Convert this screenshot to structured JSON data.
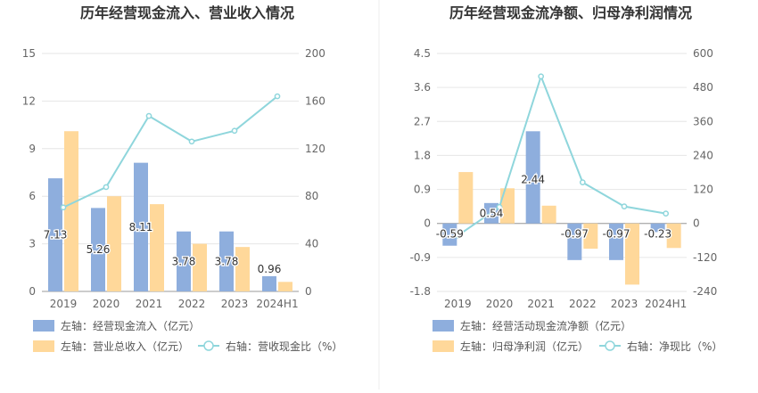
{
  "chart_data": [
    {
      "type": "bar",
      "title": "历年经营现金流入、营业收入情况",
      "categories": [
        "2019",
        "2020",
        "2021",
        "2022",
        "2023",
        "2024H1"
      ],
      "left_axis": {
        "ylim": [
          0,
          15
        ],
        "ticks": [
          "0",
          "3",
          "6",
          "9",
          "12",
          "15"
        ]
      },
      "right_axis": {
        "ylim": [
          0,
          200
        ],
        "ticks": [
          "0",
          "40",
          "80",
          "120",
          "160",
          "200"
        ]
      },
      "series": [
        {
          "name": "左轴：经营现金流入（亿元）",
          "kind": "bar",
          "axis": "left",
          "color": "#8eaedd",
          "values": [
            7.13,
            5.26,
            8.11,
            3.78,
            3.78,
            0.96
          ],
          "labels": [
            "7.13",
            "5.26",
            "8.11",
            "3.78",
            "3.78",
            "0.96"
          ]
        },
        {
          "name": "左轴：营业总收入（亿元）",
          "kind": "bar",
          "axis": "left",
          "color": "#ffd89a",
          "values": [
            10.1,
            6.0,
            5.5,
            3.0,
            2.8,
            0.6
          ]
        },
        {
          "name": "右轴：营收现金比（%）",
          "kind": "line",
          "axis": "right",
          "color": "#8fd6dc",
          "values": [
            70.6,
            87.7,
            147.5,
            126.0,
            135.0,
            164.0
          ]
        }
      ]
    },
    {
      "type": "bar",
      "title": "历年经营现金流净额、归母净利润情况",
      "categories": [
        "2019",
        "2020",
        "2021",
        "2022",
        "2023",
        "2024H1"
      ],
      "left_axis": {
        "ylim": [
          -1.8,
          4.5
        ],
        "ticks": [
          "-1.8",
          "-0.9",
          "0",
          "0.9",
          "1.8",
          "2.7",
          "3.6",
          "4.5"
        ]
      },
      "right_axis": {
        "ylim": [
          -240,
          600
        ],
        "ticks": [
          "-240",
          "-120",
          "0",
          "120",
          "240",
          "360",
          "480",
          "600"
        ]
      },
      "series": [
        {
          "name": "左轴：经营活动现金流净额（亿元）",
          "kind": "bar",
          "axis": "left",
          "color": "#8eaedd",
          "values": [
            -0.59,
            0.54,
            2.44,
            -0.97,
            -0.97,
            -0.23
          ],
          "labels": [
            "-0.59",
            "0.54",
            "2.44",
            "-0.97",
            "-0.97",
            "-0.23"
          ]
        },
        {
          "name": "左轴：归母净利润（亿元）",
          "kind": "bar",
          "axis": "left",
          "color": "#ffd89a",
          "values": [
            1.36,
            0.93,
            0.47,
            -0.67,
            -1.62,
            -0.65
          ]
        },
        {
          "name": "右轴：净现比（%）",
          "kind": "line",
          "axis": "right",
          "color": "#8fd6dc",
          "values": [
            -43,
            58,
            519,
            145,
            60,
            35
          ]
        }
      ]
    }
  ]
}
